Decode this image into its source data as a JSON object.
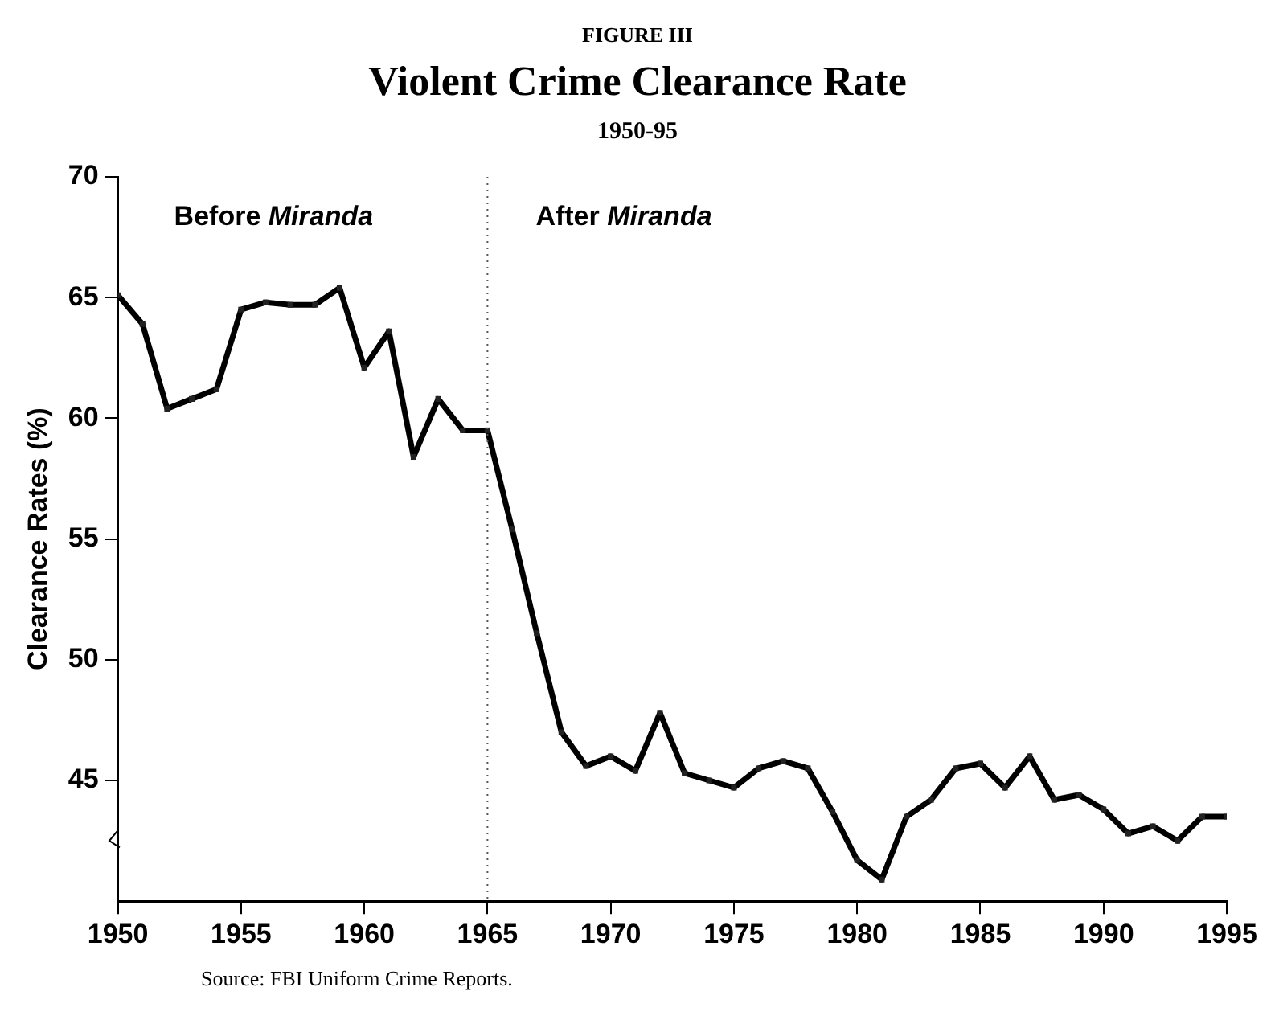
{
  "chart_data": {
    "type": "line",
    "title": "Violent Crime Clearance Rate",
    "subtitle": "1950-95",
    "ylabel": "Clearance Rates (%)",
    "x": [
      1950,
      1951,
      1952,
      1953,
      1954,
      1955,
      1956,
      1957,
      1958,
      1959,
      1960,
      1961,
      1962,
      1963,
      1964,
      1965,
      1966,
      1967,
      1968,
      1969,
      1970,
      1971,
      1972,
      1973,
      1974,
      1975,
      1976,
      1977,
      1978,
      1979,
      1980,
      1981,
      1982,
      1983,
      1984,
      1985,
      1986,
      1987,
      1988,
      1989,
      1990,
      1991,
      1992,
      1993,
      1994,
      1995
    ],
    "series": [
      {
        "color": "#000000",
        "values": [
          65.1,
          63.9,
          60.4,
          60.8,
          61.2,
          64.5,
          64.8,
          64.7,
          64.7,
          65.4,
          62.1,
          63.6,
          58.4,
          60.8,
          59.5,
          59.5,
          55.4,
          51.1,
          47.0,
          45.6,
          46.0,
          45.4,
          47.8,
          45.3,
          45.0,
          44.7,
          45.5,
          45.8,
          45.5,
          43.7,
          41.7,
          40.9,
          43.5,
          44.2,
          45.5,
          45.7,
          44.7,
          46.0,
          44.2,
          44.4,
          43.8,
          42.8,
          43.1,
          42.5,
          43.5,
          43.5
        ]
      }
    ],
    "xlim": [
      1950,
      1995
    ],
    "xticks": [
      1950,
      1955,
      1960,
      1965,
      1970,
      1975,
      1980,
      1985,
      1990,
      1995
    ],
    "ylim": [
      40,
      70
    ],
    "yticks": [
      45,
      50,
      55,
      60,
      65,
      70
    ],
    "ref_lines": [
      {
        "axis": "x",
        "value": 1965,
        "color": "#555555",
        "line_style": "dotted"
      }
    ],
    "annotations": [
      "FIGURE III",
      "Before Miranda",
      "After Miranda",
      "Source: FBI Uniform Crime Reports."
    ],
    "grid": false,
    "legend": false,
    "marker": "square",
    "line_style": "solid"
  }
}
